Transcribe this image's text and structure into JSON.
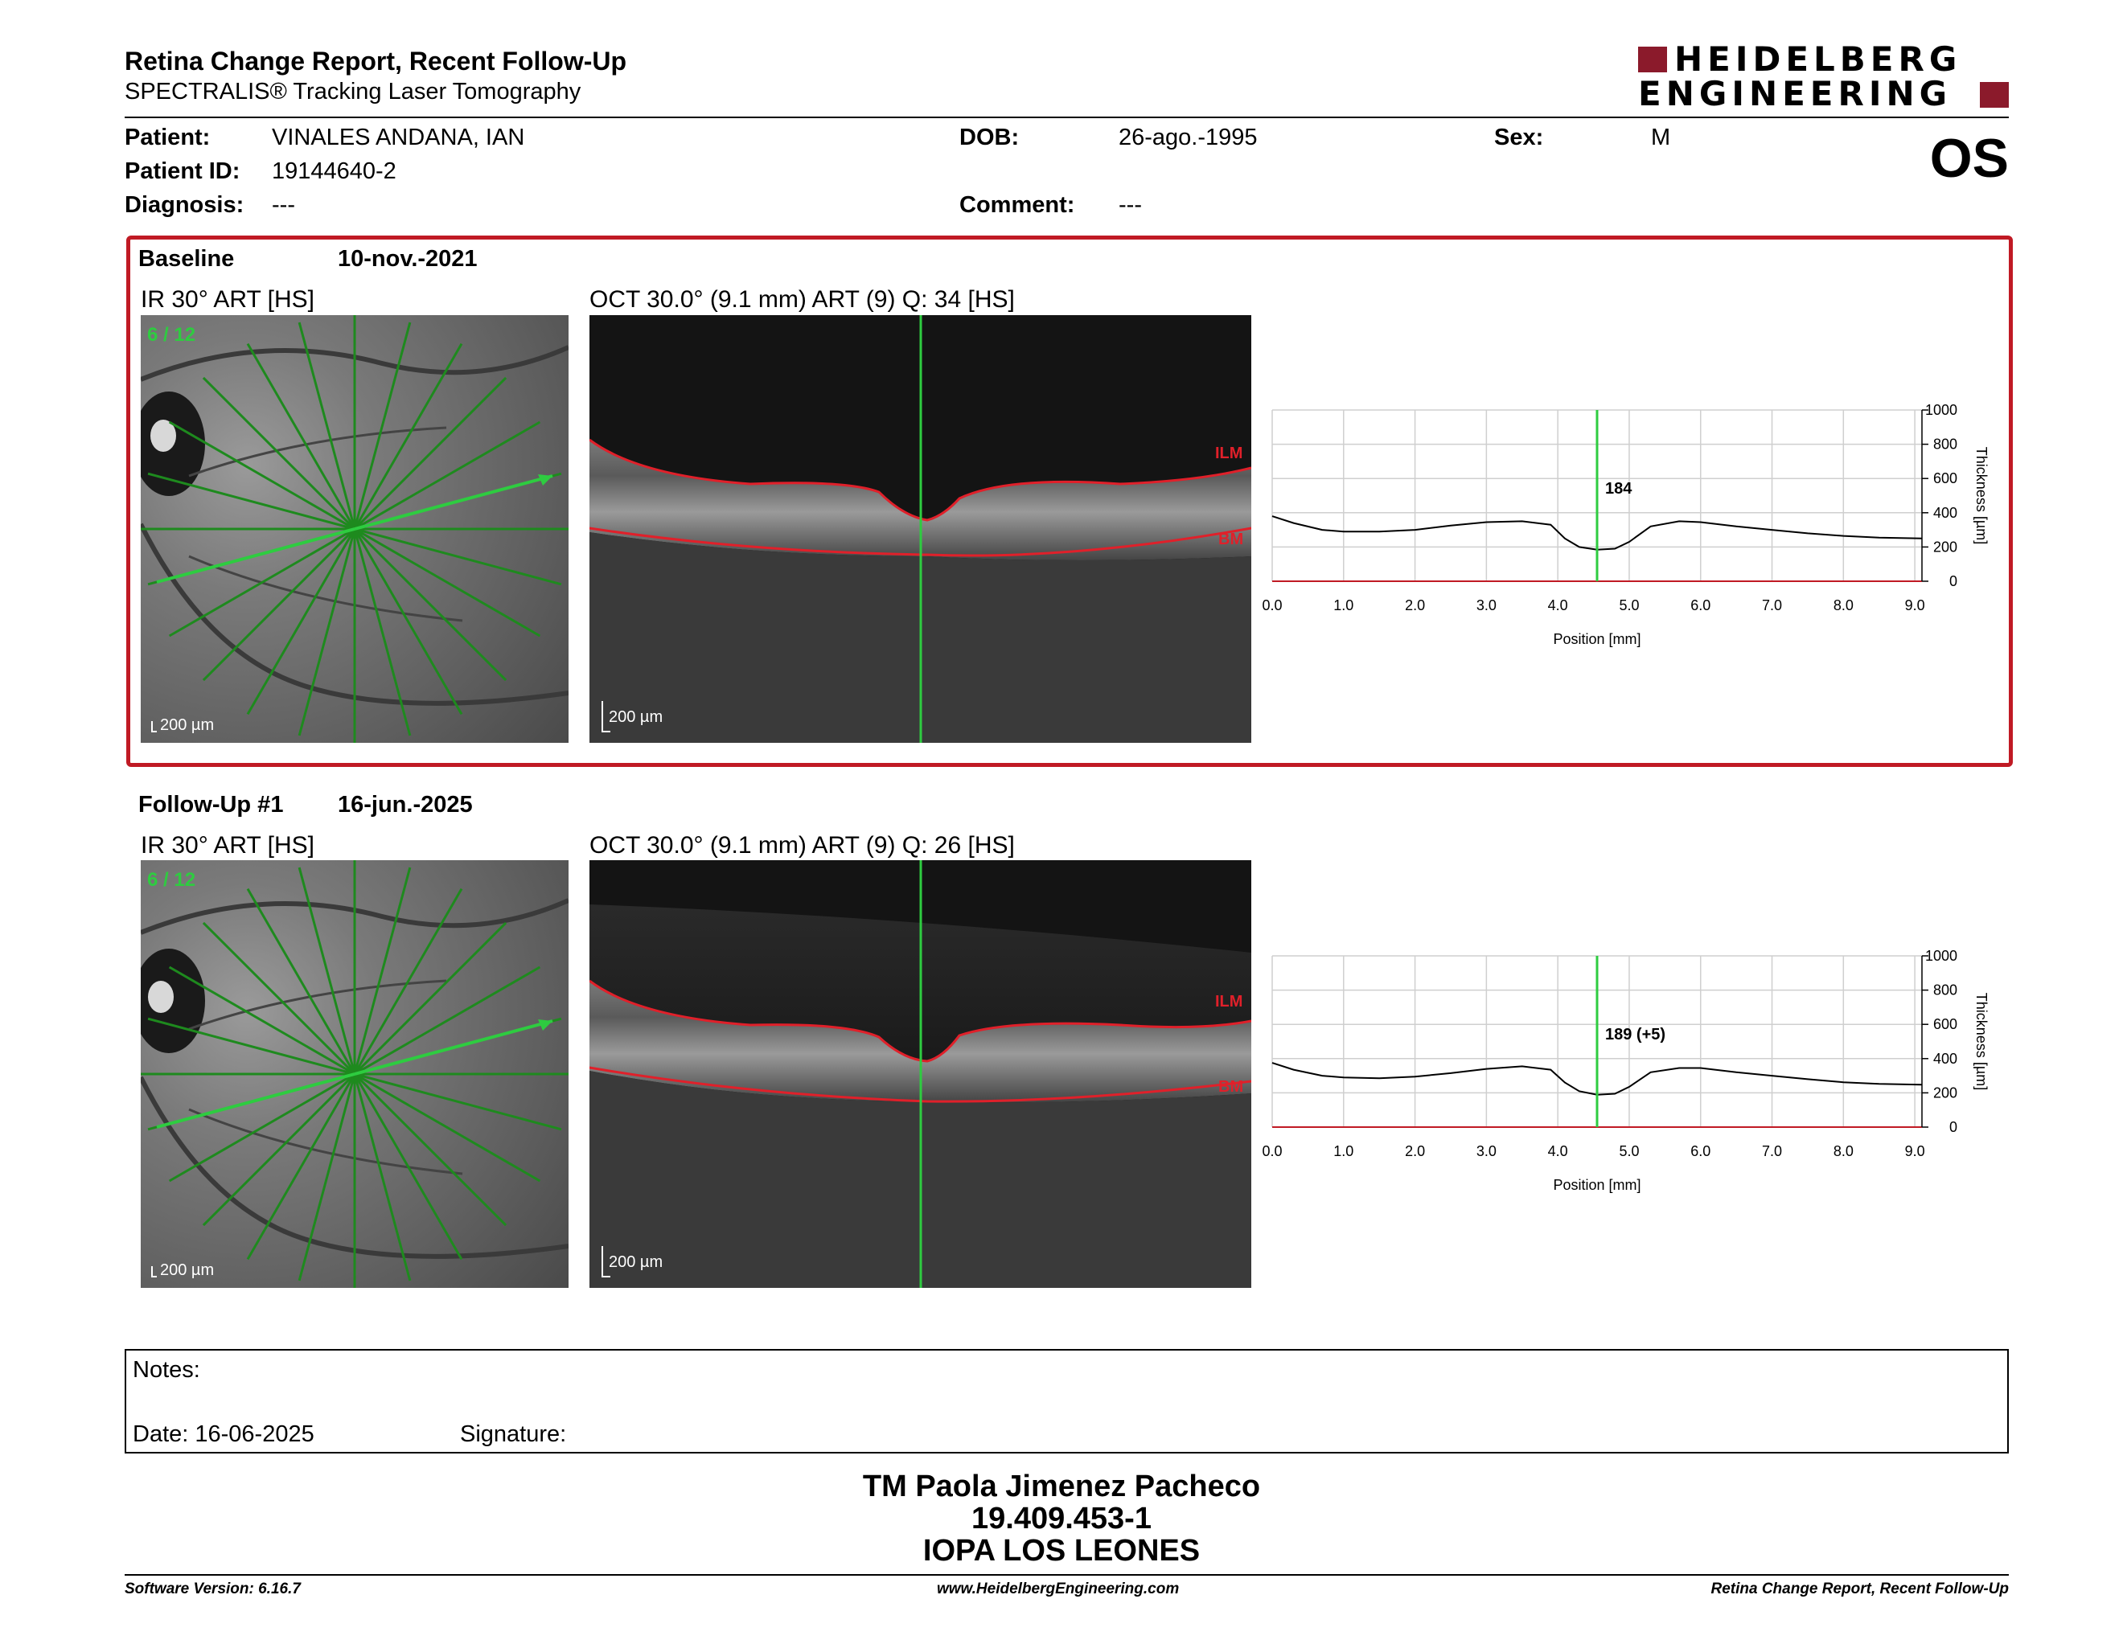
{
  "header": {
    "title": "Retina Change Report, Recent Follow-Up",
    "subtitle": "SPECTRALIS® Tracking Laser Tomography",
    "logo_line1": "HEIDELBERG",
    "logo_line2": "ENGINEERING",
    "eye": "OS"
  },
  "patient": {
    "name_label": "Patient:",
    "name": "VINALES ANDANA, IAN",
    "id_label": "Patient ID:",
    "id": "19144640-2",
    "diagnosis_label": "Diagnosis:",
    "diagnosis": "---",
    "dob_label": "DOB:",
    "dob": "26-ago.-1995",
    "comment_label": "Comment:",
    "comment": "---",
    "sex_label": "Sex:",
    "sex": "M"
  },
  "exams": [
    {
      "label": "Baseline",
      "date": "10-nov.-2021",
      "ir_caption": "IR 30° ART [HS]",
      "scan_index": "6 / 12",
      "scale": "200 µm",
      "oct_caption": "OCT 30.0° (9.1 mm) ART (9) Q: 34 [HS]",
      "ilm": "ILM",
      "bm": "BM",
      "thickness_value": "184"
    },
    {
      "label": "Follow-Up #1",
      "date": "16-jun.-2025",
      "ir_caption": "IR 30° ART [HS]",
      "scan_index": "6 / 12",
      "scale": "200 µm",
      "oct_caption": "OCT 30.0° (9.1 mm) ART (9) Q: 26 [HS]",
      "ilm": "ILM",
      "bm": "BM",
      "thickness_value": "189 (+5)"
    }
  ],
  "chart_data": [
    {
      "type": "line",
      "xlabel": "Position [mm]",
      "ylabel": "Thickness [µm]",
      "xlim": [
        0,
        9.1
      ],
      "ylim": [
        0,
        1000
      ],
      "x_ticks": [
        "0.0",
        "1.0",
        "2.0",
        "3.0",
        "4.0",
        "5.0",
        "6.0",
        "7.0",
        "8.0",
        "9.0"
      ],
      "y_ticks": [
        "0",
        "200",
        "400",
        "600",
        "800",
        "1000"
      ],
      "cursor_x": 4.55,
      "cursor_label": "184",
      "x": [
        0,
        0.3,
        0.7,
        1.0,
        1.5,
        2.0,
        2.5,
        3.0,
        3.5,
        3.9,
        4.1,
        4.3,
        4.55,
        4.8,
        5.0,
        5.3,
        5.7,
        6.0,
        6.5,
        7.0,
        7.5,
        8.0,
        8.5,
        9.1
      ],
      "values": [
        380,
        340,
        300,
        290,
        290,
        300,
        325,
        345,
        350,
        330,
        250,
        200,
        184,
        190,
        230,
        320,
        350,
        345,
        320,
        300,
        280,
        265,
        255,
        250
      ]
    },
    {
      "type": "line",
      "xlabel": "Position [mm]",
      "ylabel": "Thickness [µm]",
      "xlim": [
        0,
        9.1
      ],
      "ylim": [
        0,
        1000
      ],
      "x_ticks": [
        "0.0",
        "1.0",
        "2.0",
        "3.0",
        "4.0",
        "5.0",
        "6.0",
        "7.0",
        "8.0",
        "9.0"
      ],
      "y_ticks": [
        "0",
        "200",
        "400",
        "600",
        "800",
        "1000"
      ],
      "cursor_x": 4.55,
      "cursor_label": "189 (+5)",
      "x": [
        0,
        0.3,
        0.7,
        1.0,
        1.5,
        2.0,
        2.5,
        3.0,
        3.5,
        3.9,
        4.1,
        4.3,
        4.55,
        4.8,
        5.0,
        5.3,
        5.7,
        6.0,
        6.5,
        7.0,
        7.5,
        8.0,
        8.5,
        9.1
      ],
      "values": [
        375,
        335,
        300,
        290,
        285,
        295,
        315,
        340,
        355,
        335,
        260,
        210,
        189,
        195,
        235,
        320,
        345,
        345,
        320,
        300,
        280,
        262,
        252,
        248
      ]
    }
  ],
  "notes": {
    "notes_label": "Notes:",
    "date_label": "Date: 16-06-2025",
    "signature_label": "Signature:"
  },
  "signature_block": {
    "line1": "TM Paola Jimenez Pacheco",
    "line2": "19.409.453-1",
    "line3": "IOPA LOS LEONES"
  },
  "footer": {
    "left": "Software Version: 6.16.7",
    "center": "www.HeidelbergEngineering.com",
    "right": "Retina Change Report, Recent Follow-Up"
  },
  "colors": {
    "accent_red": "#c01a24",
    "logo_red": "#8b1a2b",
    "scan_green": "#2ecc40",
    "layer_red": "#e0202a"
  }
}
